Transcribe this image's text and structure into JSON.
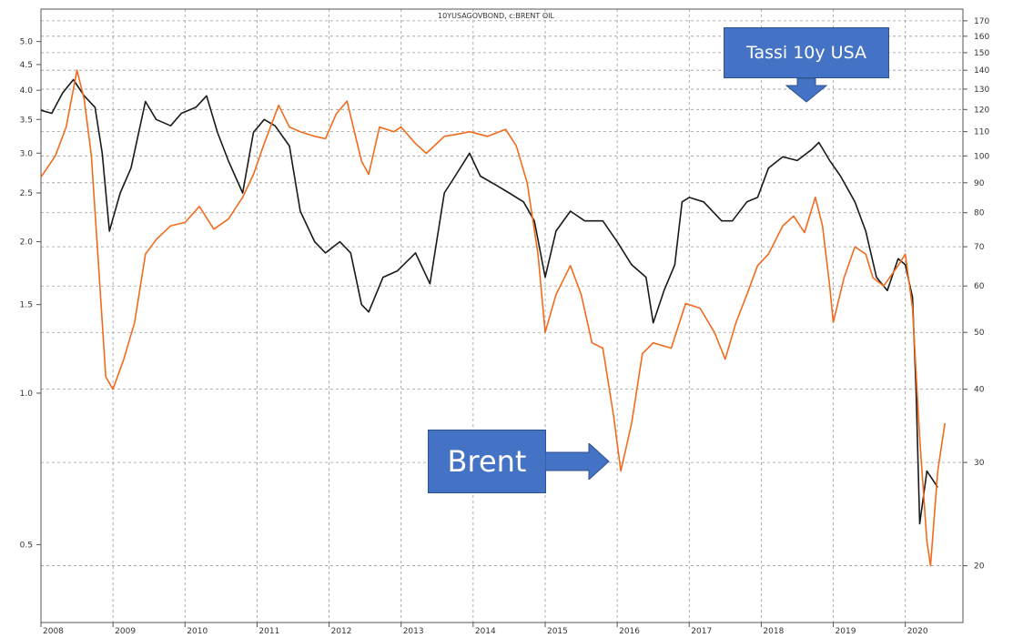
{
  "chart_data": {
    "type": "line",
    "title": "10YUSAGOVBOND, c:BRENT OIL",
    "x_ticks": [
      "2008",
      "2009",
      "2010",
      "2011",
      "2012",
      "2013",
      "2014",
      "2015",
      "2016",
      "2017",
      "2018",
      "2019",
      "2020"
    ],
    "xlim": [
      2008.0,
      2020.8
    ],
    "left_axis": {
      "scale": "log",
      "ylim": [
        0.35,
        5.8
      ],
      "ticks": [
        "0.5",
        "1.0",
        "1.5",
        "2.0",
        "2.5",
        "3.0",
        "3.5",
        "4.0",
        "4.5",
        "5.0"
      ]
    },
    "right_axis": {
      "scale": "log",
      "ylim": [
        16,
        178
      ],
      "ticks": [
        "20",
        "30",
        "40",
        "50",
        "60",
        "70",
        "80",
        "90",
        "100",
        "110",
        "120",
        "130",
        "140",
        "150",
        "160",
        "170"
      ]
    },
    "grid": true,
    "series": [
      {
        "name": "Tassi 10y USA",
        "axis": "left",
        "color": "#1a1a1a",
        "points": [
          [
            2008.0,
            3.65
          ],
          [
            2008.15,
            3.6
          ],
          [
            2008.3,
            3.95
          ],
          [
            2008.45,
            4.2
          ],
          [
            2008.6,
            3.9
          ],
          [
            2008.75,
            3.7
          ],
          [
            2008.85,
            3.0
          ],
          [
            2008.95,
            2.1
          ],
          [
            2009.1,
            2.5
          ],
          [
            2009.25,
            2.8
          ],
          [
            2009.45,
            3.8
          ],
          [
            2009.6,
            3.5
          ],
          [
            2009.8,
            3.4
          ],
          [
            2009.95,
            3.6
          ],
          [
            2010.15,
            3.7
          ],
          [
            2010.3,
            3.9
          ],
          [
            2010.45,
            3.3
          ],
          [
            2010.6,
            2.9
          ],
          [
            2010.8,
            2.5
          ],
          [
            2010.95,
            3.3
          ],
          [
            2011.1,
            3.5
          ],
          [
            2011.25,
            3.4
          ],
          [
            2011.45,
            3.1
          ],
          [
            2011.6,
            2.3
          ],
          [
            2011.8,
            2.0
          ],
          [
            2011.95,
            1.9
          ],
          [
            2012.15,
            2.0
          ],
          [
            2012.3,
            1.9
          ],
          [
            2012.45,
            1.5
          ],
          [
            2012.55,
            1.45
          ],
          [
            2012.75,
            1.7
          ],
          [
            2012.95,
            1.75
          ],
          [
            2013.2,
            1.9
          ],
          [
            2013.4,
            1.65
          ],
          [
            2013.6,
            2.5
          ],
          [
            2013.75,
            2.7
          ],
          [
            2013.95,
            3.0
          ],
          [
            2014.1,
            2.7
          ],
          [
            2014.3,
            2.6
          ],
          [
            2014.5,
            2.5
          ],
          [
            2014.7,
            2.4
          ],
          [
            2014.85,
            2.2
          ],
          [
            2015.0,
            1.7
          ],
          [
            2015.15,
            2.1
          ],
          [
            2015.35,
            2.3
          ],
          [
            2015.55,
            2.2
          ],
          [
            2015.8,
            2.2
          ],
          [
            2016.0,
            2.0
          ],
          [
            2016.2,
            1.8
          ],
          [
            2016.4,
            1.7
          ],
          [
            2016.5,
            1.38
          ],
          [
            2016.65,
            1.6
          ],
          [
            2016.8,
            1.8
          ],
          [
            2016.9,
            2.4
          ],
          [
            2017.0,
            2.45
          ],
          [
            2017.2,
            2.4
          ],
          [
            2017.45,
            2.2
          ],
          [
            2017.6,
            2.2
          ],
          [
            2017.8,
            2.4
          ],
          [
            2017.95,
            2.45
          ],
          [
            2018.1,
            2.8
          ],
          [
            2018.3,
            2.95
          ],
          [
            2018.5,
            2.9
          ],
          [
            2018.7,
            3.05
          ],
          [
            2018.8,
            3.15
          ],
          [
            2018.95,
            2.9
          ],
          [
            2019.1,
            2.7
          ],
          [
            2019.3,
            2.4
          ],
          [
            2019.45,
            2.1
          ],
          [
            2019.6,
            1.7
          ],
          [
            2019.75,
            1.6
          ],
          [
            2019.9,
            1.85
          ],
          [
            2020.0,
            1.8
          ],
          [
            2020.1,
            1.55
          ],
          [
            2020.15,
            1.0
          ],
          [
            2020.2,
            0.55
          ],
          [
            2020.3,
            0.7
          ],
          [
            2020.45,
            0.65
          ]
        ]
      },
      {
        "name": "Brent",
        "axis": "right",
        "color": "#f26b1d",
        "points": [
          [
            2008.0,
            92
          ],
          [
            2008.2,
            100
          ],
          [
            2008.35,
            112
          ],
          [
            2008.5,
            140
          ],
          [
            2008.6,
            125
          ],
          [
            2008.7,
            100
          ],
          [
            2008.8,
            65
          ],
          [
            2008.9,
            42
          ],
          [
            2009.0,
            40
          ],
          [
            2009.15,
            45
          ],
          [
            2009.3,
            52
          ],
          [
            2009.45,
            68
          ],
          [
            2009.6,
            72
          ],
          [
            2009.8,
            76
          ],
          [
            2010.0,
            77
          ],
          [
            2010.2,
            82
          ],
          [
            2010.4,
            75
          ],
          [
            2010.6,
            78
          ],
          [
            2010.8,
            85
          ],
          [
            2010.95,
            93
          ],
          [
            2011.1,
            105
          ],
          [
            2011.3,
            122
          ],
          [
            2011.45,
            112
          ],
          [
            2011.6,
            110
          ],
          [
            2011.8,
            108
          ],
          [
            2011.95,
            107
          ],
          [
            2012.1,
            118
          ],
          [
            2012.25,
            124
          ],
          [
            2012.45,
            98
          ],
          [
            2012.55,
            93
          ],
          [
            2012.7,
            112
          ],
          [
            2012.9,
            110
          ],
          [
            2013.0,
            112
          ],
          [
            2013.2,
            105
          ],
          [
            2013.35,
            101
          ],
          [
            2013.6,
            108
          ],
          [
            2013.8,
            109
          ],
          [
            2013.95,
            110
          ],
          [
            2014.2,
            108
          ],
          [
            2014.45,
            111
          ],
          [
            2014.6,
            104
          ],
          [
            2014.75,
            90
          ],
          [
            2014.9,
            68
          ],
          [
            2015.0,
            50
          ],
          [
            2015.15,
            58
          ],
          [
            2015.35,
            65
          ],
          [
            2015.5,
            58
          ],
          [
            2015.65,
            48
          ],
          [
            2015.8,
            47
          ],
          [
            2015.95,
            36
          ],
          [
            2016.05,
            29
          ],
          [
            2016.2,
            35
          ],
          [
            2016.35,
            46
          ],
          [
            2016.5,
            48
          ],
          [
            2016.75,
            47
          ],
          [
            2016.95,
            56
          ],
          [
            2017.15,
            55
          ],
          [
            2017.35,
            50
          ],
          [
            2017.5,
            45
          ],
          [
            2017.65,
            52
          ],
          [
            2017.8,
            58
          ],
          [
            2017.95,
            65
          ],
          [
            2018.1,
            68
          ],
          [
            2018.3,
            76
          ],
          [
            2018.45,
            79
          ],
          [
            2018.6,
            74
          ],
          [
            2018.75,
            85
          ],
          [
            2018.85,
            76
          ],
          [
            2018.95,
            60
          ],
          [
            2019.0,
            52
          ],
          [
            2019.15,
            62
          ],
          [
            2019.3,
            70
          ],
          [
            2019.45,
            68
          ],
          [
            2019.55,
            62
          ],
          [
            2019.7,
            60
          ],
          [
            2019.9,
            65
          ],
          [
            2020.0,
            68
          ],
          [
            2020.1,
            55
          ],
          [
            2020.2,
            33
          ],
          [
            2020.3,
            22
          ],
          [
            2020.35,
            20
          ],
          [
            2020.45,
            29
          ],
          [
            2020.55,
            35
          ]
        ]
      }
    ],
    "annotations": [
      {
        "text": "Tassi 10y USA",
        "color": "#4472c4",
        "pointer": "down"
      },
      {
        "text": "Brent",
        "color": "#4472c4",
        "pointer": "right"
      }
    ]
  }
}
